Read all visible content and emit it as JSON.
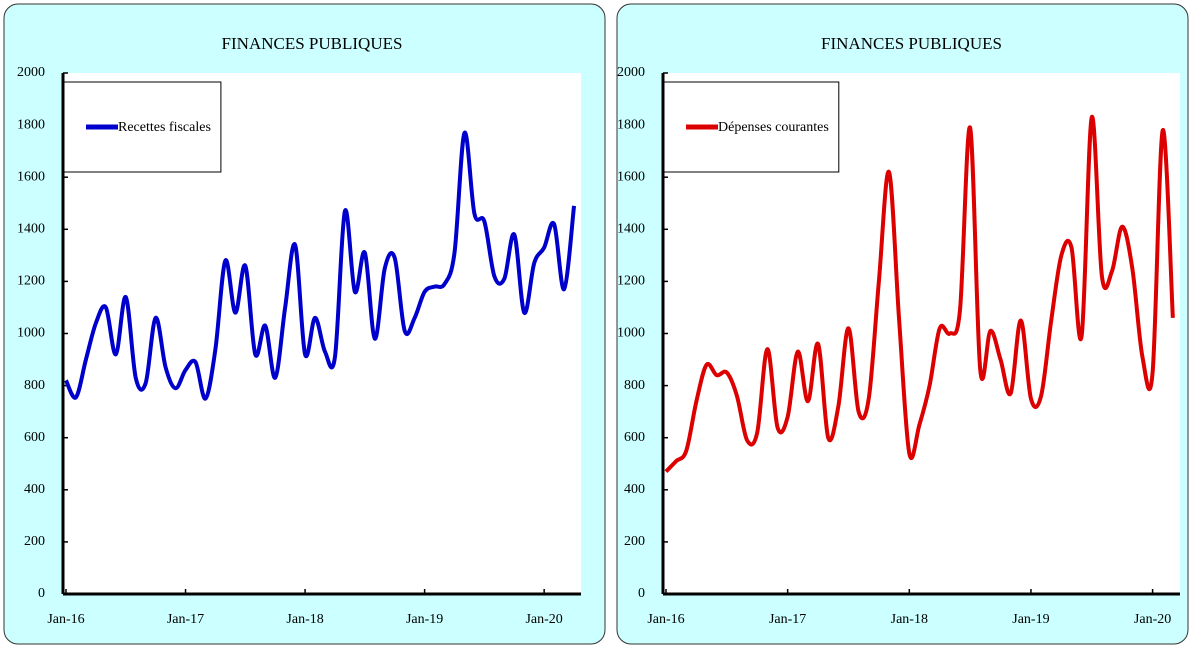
{
  "chart_data": [
    {
      "type": "line",
      "title": "FINANCES PUBLIQUES",
      "categories": [
        "Jan-16",
        null,
        null,
        null,
        null,
        null,
        null,
        null,
        null,
        null,
        null,
        null,
        "Jan-17",
        null,
        null,
        null,
        null,
        null,
        null,
        null,
        null,
        null,
        null,
        null,
        "Jan-18",
        null,
        null,
        null,
        null,
        null,
        null,
        null,
        null,
        null,
        null,
        null,
        "Jan-19",
        null,
        null,
        null,
        null,
        null,
        null,
        null,
        null,
        null,
        null,
        null,
        "Jan-20",
        null,
        null,
        null
      ],
      "series": [
        {
          "name": "Recettes fiscales",
          "color": "#0000cc",
          "values": [
            820,
            755,
            900,
            1040,
            1100,
            920,
            1140,
            830,
            810,
            1060,
            870,
            790,
            860,
            890,
            750,
            940,
            1280,
            1080,
            1260,
            920,
            1030,
            830,
            1100,
            1340,
            920,
            1060,
            930,
            910,
            1470,
            1160,
            1310,
            980,
            1250,
            1290,
            1010,
            1060,
            1160,
            1180,
            1190,
            1310,
            1770,
            1460,
            1430,
            1220,
            1210,
            1380,
            1080,
            1270,
            1330,
            1420,
            1170,
            1490
          ]
        }
      ],
      "ylim": [
        0,
        2000
      ],
      "yticks": [
        0,
        200,
        400,
        600,
        800,
        1000,
        1200,
        1400,
        1600,
        1800,
        2000
      ]
    },
    {
      "type": "line",
      "title": "FINANCES PUBLIQUES",
      "categories": [
        "Jan-16",
        null,
        null,
        null,
        null,
        null,
        null,
        null,
        null,
        null,
        null,
        null,
        "Jan-17",
        null,
        null,
        null,
        null,
        null,
        null,
        null,
        null,
        null,
        null,
        null,
        "Jan-18",
        null,
        null,
        null,
        null,
        null,
        null,
        null,
        null,
        null,
        null,
        null,
        "Jan-19",
        null,
        null,
        null,
        null,
        null,
        null,
        null,
        null,
        null,
        null,
        null,
        "Jan-20",
        null,
        null
      ],
      "series": [
        {
          "name": "Dépenses courantes",
          "color": "#dd0000",
          "values": [
            470,
            510,
            550,
            740,
            880,
            840,
            850,
            760,
            590,
            620,
            940,
            640,
            680,
            930,
            740,
            960,
            600,
            720,
            1020,
            700,
            750,
            1200,
            1620,
            1050,
            540,
            650,
            800,
            1020,
            1000,
            1090,
            1790,
            860,
            1010,
            900,
            770,
            1050,
            750,
            760,
            1050,
            1300,
            1330,
            990,
            1830,
            1220,
            1240,
            1410,
            1250,
            910,
            850,
            1780,
            1060
          ]
        }
      ],
      "ylim": [
        0,
        2000
      ],
      "yticks": [
        0,
        200,
        400,
        600,
        800,
        1000,
        1200,
        1400,
        1600,
        1800,
        2000
      ]
    }
  ]
}
